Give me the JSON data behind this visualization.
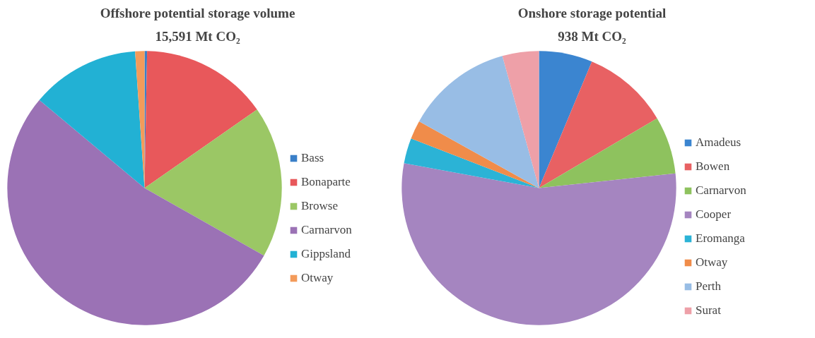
{
  "chart_data": [
    {
      "type": "pie",
      "title": "Offshore potential storage volume",
      "subtitle": "15,591 Mt CO₂",
      "legend": "right",
      "categories": [
        "Bass",
        "Bonaparte",
        "Browse",
        "Carnarvon",
        "Gippsland",
        "Otway"
      ],
      "values": [
        0.3,
        15.0,
        17.9,
        52.9,
        12.8,
        1.1
      ],
      "colors": [
        "#3a7fc8",
        "#e8585b",
        "#9bc765",
        "#9b72b5",
        "#22b1d4",
        "#f39b5a"
      ]
    },
    {
      "type": "pie",
      "title": "Onshore storage potential",
      "subtitle": "938 Mt CO₂",
      "legend": "right",
      "categories": [
        "Amadeus",
        "Bowen",
        "Carnarvon",
        "Cooper",
        "Eromanga",
        "Otway",
        "Perth",
        "Surat"
      ],
      "values": [
        6.3,
        10.2,
        6.8,
        54.6,
        3.0,
        2.2,
        12.6,
        4.3
      ],
      "colors": [
        "#3b85d0",
        "#e86163",
        "#8ec25e",
        "#a585c0",
        "#2bb3d6",
        "#f08c4a",
        "#98bde5",
        "#eea0a8"
      ]
    }
  ]
}
